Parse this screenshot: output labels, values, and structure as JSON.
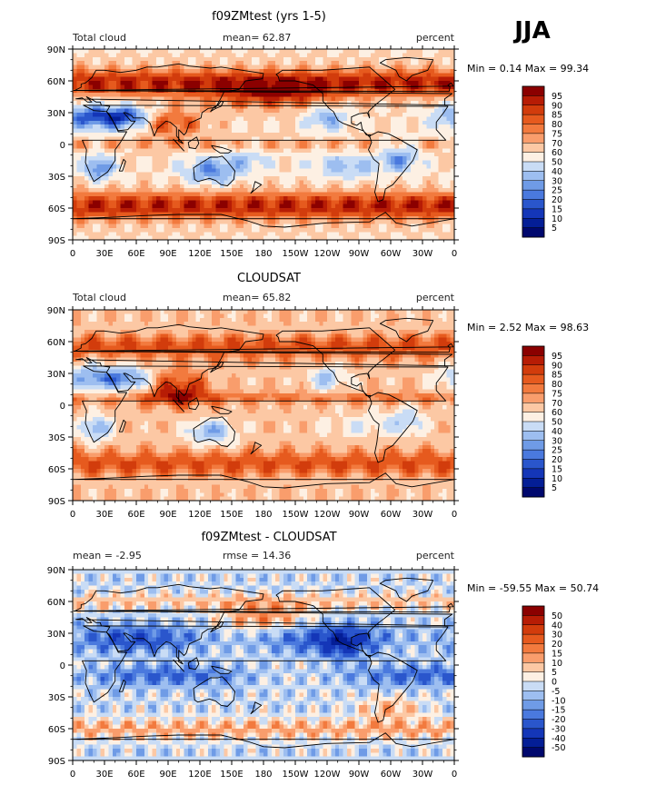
{
  "season": "JJA",
  "chart_data": [
    {
      "type": "heatmap",
      "title": "f09ZMtest (yrs 1-5)",
      "left_label": "Total cloud",
      "center_label": "mean=   62.87",
      "right_label": "percent",
      "minmax_text": "Min =    0.14  Max =   99.34",
      "min": 0.14,
      "max": 99.34,
      "mean": 62.87,
      "field": "model",
      "color_levels": [
        "95",
        "90",
        "85",
        "80",
        "75",
        "70",
        "60",
        "50",
        "40",
        "30",
        "25",
        "20",
        "15",
        "10",
        "5"
      ],
      "palette": [
        "#8b0000",
        "#b71c05",
        "#d23c0c",
        "#e65a1e",
        "#f27a3e",
        "#f99d6c",
        "#fcc8a4",
        "#fdf0e3",
        "#c9dcf5",
        "#9dbef0",
        "#6f9be6",
        "#4a79de",
        "#2a56cc",
        "#1436b8",
        "#041e96",
        "#00086e"
      ],
      "xlabel_ticks": [
        "0",
        "30E",
        "60E",
        "90E",
        "120E",
        "150E",
        "180",
        "150W",
        "120W",
        "90W",
        "60W",
        "30W",
        "0"
      ],
      "ylabel_ticks": [
        "90N",
        "60N",
        "30N",
        "0",
        "30S",
        "60S",
        "90S"
      ]
    },
    {
      "type": "heatmap",
      "title": "CLOUDSAT",
      "left_label": "Total cloud",
      "center_label": "mean=   65.82",
      "right_label": "percent",
      "minmax_text": "Min =    2.52  Max =   98.63",
      "min": 2.52,
      "max": 98.63,
      "mean": 65.82,
      "field": "obs",
      "color_levels": [
        "95",
        "90",
        "85",
        "80",
        "75",
        "70",
        "60",
        "50",
        "40",
        "30",
        "25",
        "20",
        "15",
        "10",
        "5"
      ],
      "palette": [
        "#8b0000",
        "#b71c05",
        "#d23c0c",
        "#e65a1e",
        "#f27a3e",
        "#f99d6c",
        "#fcc8a4",
        "#fdf0e3",
        "#c9dcf5",
        "#9dbef0",
        "#6f9be6",
        "#4a79de",
        "#2a56cc",
        "#1436b8",
        "#041e96",
        "#00086e"
      ],
      "xlabel_ticks": [
        "0",
        "30E",
        "60E",
        "90E",
        "120E",
        "150E",
        "180",
        "150W",
        "120W",
        "90W",
        "60W",
        "30W",
        "0"
      ],
      "ylabel_ticks": [
        "90N",
        "60N",
        "30N",
        "0",
        "30S",
        "60S",
        "90S"
      ]
    },
    {
      "type": "heatmap",
      "title": "f09ZMtest - CLOUDSAT",
      "left_label": "mean =   -2.95",
      "center_label": "rmse =   14.36",
      "right_label": "percent",
      "minmax_text": "Min =  -59.55  Max =   50.74",
      "min": -59.55,
      "max": 50.74,
      "mean": -2.95,
      "rmse": 14.36,
      "field": "diff",
      "color_levels": [
        "50",
        "40",
        "30",
        "20",
        "15",
        "10",
        "5",
        "0",
        "-5",
        "-10",
        "-15",
        "-20",
        "-30",
        "-40",
        "-50"
      ],
      "palette": [
        "#8b0000",
        "#b71c05",
        "#d23c0c",
        "#e65a1e",
        "#f27a3e",
        "#f99d6c",
        "#fcc8a4",
        "#fdf0e3",
        "#c9dcf5",
        "#9dbef0",
        "#6f9be6",
        "#4a79de",
        "#2a56cc",
        "#1436b8",
        "#041e96",
        "#00086e"
      ],
      "xlabel_ticks": [
        "0",
        "30E",
        "60E",
        "90E",
        "120E",
        "150E",
        "180",
        "150W",
        "120W",
        "90W",
        "60W",
        "30W",
        "0"
      ],
      "ylabel_ticks": [
        "90N",
        "60N",
        "30N",
        "0",
        "30S",
        "60S",
        "90S"
      ]
    }
  ]
}
